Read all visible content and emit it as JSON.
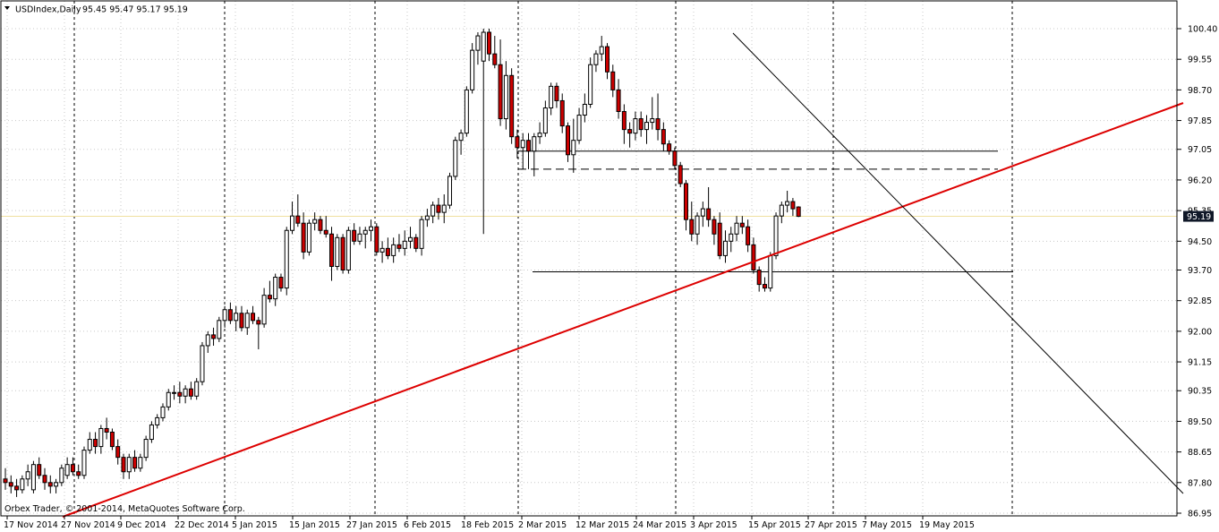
{
  "header": {
    "symbol_label": "USDIndex,Daily",
    "ohlc_label": "95.45 95.47 95.17 95.19"
  },
  "footer": {
    "copyright": "Orbex Trader, © 2001-2014, MetaQuotes Software Corp."
  },
  "current_price_label": "95.19",
  "colors": {
    "up_candle": "#ffffff",
    "down_candle": "#cc0000",
    "wick": "#000000",
    "grid": "#c8c8c8",
    "period_separator": "#000000",
    "trendline_red": "#dd0000",
    "trendline_black": "#000000",
    "bid_line": "#f0e0a0",
    "price_tag_bg": "#101828"
  },
  "chart_data": {
    "type": "candlestick",
    "title": "USDIndex,Daily",
    "ylim": [
      86.7,
      100.6
    ],
    "y_ticks": [
      "100.40",
      "99.55",
      "98.70",
      "97.85",
      "97.05",
      "96.20",
      "95.35",
      "94.50",
      "93.70",
      "92.85",
      "92.00",
      "91.15",
      "90.35",
      "89.50",
      "88.65",
      "87.80",
      "86.95"
    ],
    "x_labels": [
      "17 Nov 2014",
      "27 Nov 2014",
      "9 Dec 2014",
      "22 Dec 2014",
      "5 Jan 2015",
      "15 Jan 2015",
      "27 Jan 2015",
      "6 Feb 2015",
      "18 Feb 2015",
      "2 Mar 2015",
      "12 Mar 2015",
      "24 Mar 2015",
      "3 Apr 2015",
      "15 Apr 2015",
      "27 Apr 2015",
      "7 May 2015",
      "19 May 2015"
    ],
    "grid": "dotted",
    "candles": [
      {
        "o": 87.9,
        "h": 88.2,
        "l": 87.6,
        "c": 87.8
      },
      {
        "o": 87.8,
        "h": 88.0,
        "l": 87.5,
        "c": 87.7
      },
      {
        "o": 87.7,
        "h": 87.9,
        "l": 87.4,
        "c": 87.6
      },
      {
        "o": 87.6,
        "h": 88.0,
        "l": 87.5,
        "c": 87.9
      },
      {
        "o": 87.9,
        "h": 88.3,
        "l": 87.7,
        "c": 88.1
      },
      {
        "o": 87.6,
        "h": 88.4,
        "l": 87.5,
        "c": 88.3
      },
      {
        "o": 88.3,
        "h": 88.5,
        "l": 87.9,
        "c": 88.0
      },
      {
        "o": 88.0,
        "h": 88.2,
        "l": 87.6,
        "c": 87.8
      },
      {
        "o": 87.8,
        "h": 88.0,
        "l": 87.5,
        "c": 87.7
      },
      {
        "o": 87.7,
        "h": 87.9,
        "l": 87.5,
        "c": 87.8
      },
      {
        "o": 87.8,
        "h": 88.3,
        "l": 87.7,
        "c": 88.2
      },
      {
        "o": 88.0,
        "h": 88.5,
        "l": 87.9,
        "c": 88.3
      },
      {
        "o": 88.3,
        "h": 88.5,
        "l": 88.0,
        "c": 88.1
      },
      {
        "o": 88.1,
        "h": 88.3,
        "l": 87.9,
        "c": 88.0
      },
      {
        "o": 88.0,
        "h": 88.8,
        "l": 87.9,
        "c": 88.7
      },
      {
        "o": 88.7,
        "h": 89.2,
        "l": 88.6,
        "c": 89.0
      },
      {
        "o": 89.0,
        "h": 89.2,
        "l": 88.6,
        "c": 88.8
      },
      {
        "o": 88.8,
        "h": 89.4,
        "l": 88.6,
        "c": 89.3
      },
      {
        "o": 89.3,
        "h": 89.6,
        "l": 89.0,
        "c": 89.2
      },
      {
        "o": 89.2,
        "h": 89.3,
        "l": 88.7,
        "c": 88.8
      },
      {
        "o": 88.8,
        "h": 89.0,
        "l": 88.3,
        "c": 88.5
      },
      {
        "o": 88.5,
        "h": 88.6,
        "l": 87.9,
        "c": 88.1
      },
      {
        "o": 88.1,
        "h": 88.6,
        "l": 87.9,
        "c": 88.5
      },
      {
        "o": 88.5,
        "h": 88.7,
        "l": 88.1,
        "c": 88.2
      },
      {
        "o": 88.2,
        "h": 88.6,
        "l": 88.1,
        "c": 88.5
      },
      {
        "o": 88.5,
        "h": 89.1,
        "l": 88.4,
        "c": 89.0
      },
      {
        "o": 89.0,
        "h": 89.5,
        "l": 88.9,
        "c": 89.4
      },
      {
        "o": 89.4,
        "h": 89.7,
        "l": 89.3,
        "c": 89.6
      },
      {
        "o": 89.6,
        "h": 90.0,
        "l": 89.5,
        "c": 89.9
      },
      {
        "o": 89.9,
        "h": 90.4,
        "l": 89.8,
        "c": 90.3
      },
      {
        "o": 90.3,
        "h": 90.5,
        "l": 90.1,
        "c": 90.3
      },
      {
        "o": 90.3,
        "h": 90.6,
        "l": 90.0,
        "c": 90.2
      },
      {
        "o": 90.2,
        "h": 90.5,
        "l": 90.0,
        "c": 90.4
      },
      {
        "o": 90.4,
        "h": 90.6,
        "l": 90.1,
        "c": 90.2
      },
      {
        "o": 90.2,
        "h": 90.7,
        "l": 90.1,
        "c": 90.6
      },
      {
        "o": 90.6,
        "h": 91.7,
        "l": 90.5,
        "c": 91.6
      },
      {
        "o": 91.6,
        "h": 92.0,
        "l": 91.4,
        "c": 91.9
      },
      {
        "o": 91.9,
        "h": 92.1,
        "l": 91.6,
        "c": 91.8
      },
      {
        "o": 91.8,
        "h": 92.4,
        "l": 91.7,
        "c": 92.3
      },
      {
        "o": 92.3,
        "h": 92.7,
        "l": 92.1,
        "c": 92.6
      },
      {
        "o": 92.6,
        "h": 92.8,
        "l": 92.2,
        "c": 92.3
      },
      {
        "o": 92.3,
        "h": 92.7,
        "l": 92.0,
        "c": 92.5
      },
      {
        "o": 92.5,
        "h": 92.7,
        "l": 92.0,
        "c": 92.1
      },
      {
        "o": 92.1,
        "h": 92.6,
        "l": 91.9,
        "c": 92.5
      },
      {
        "o": 92.5,
        "h": 92.7,
        "l": 92.2,
        "c": 92.3
      },
      {
        "o": 92.3,
        "h": 92.4,
        "l": 91.5,
        "c": 92.2
      },
      {
        "o": 92.2,
        "h": 93.2,
        "l": 92.1,
        "c": 93.0
      },
      {
        "o": 93.0,
        "h": 93.4,
        "l": 92.8,
        "c": 92.9
      },
      {
        "o": 92.9,
        "h": 93.6,
        "l": 92.7,
        "c": 93.5
      },
      {
        "o": 93.5,
        "h": 93.6,
        "l": 93.1,
        "c": 93.2
      },
      {
        "o": 93.2,
        "h": 94.9,
        "l": 93.0,
        "c": 94.8
      },
      {
        "o": 94.8,
        "h": 95.6,
        "l": 94.7,
        "c": 95.2
      },
      {
        "o": 95.2,
        "h": 95.8,
        "l": 94.9,
        "c": 95.0
      },
      {
        "o": 95.0,
        "h": 95.3,
        "l": 94.0,
        "c": 94.2
      },
      {
        "o": 94.2,
        "h": 95.1,
        "l": 94.1,
        "c": 95.0
      },
      {
        "o": 95.0,
        "h": 95.3,
        "l": 94.8,
        "c": 95.1
      },
      {
        "o": 95.1,
        "h": 95.2,
        "l": 94.7,
        "c": 94.8
      },
      {
        "o": 94.8,
        "h": 95.2,
        "l": 94.6,
        "c": 94.7
      },
      {
        "o": 94.7,
        "h": 94.9,
        "l": 93.4,
        "c": 93.8
      },
      {
        "o": 93.8,
        "h": 94.7,
        "l": 93.7,
        "c": 94.6
      },
      {
        "o": 94.6,
        "h": 94.7,
        "l": 93.6,
        "c": 93.7
      },
      {
        "o": 93.7,
        "h": 94.9,
        "l": 93.6,
        "c": 94.8
      },
      {
        "o": 94.8,
        "h": 95.0,
        "l": 94.4,
        "c": 94.5
      },
      {
        "o": 94.5,
        "h": 94.9,
        "l": 94.4,
        "c": 94.7
      },
      {
        "o": 94.7,
        "h": 94.9,
        "l": 94.3,
        "c": 94.8
      },
      {
        "o": 94.8,
        "h": 95.1,
        "l": 94.5,
        "c": 94.9
      },
      {
        "o": 94.9,
        "h": 95.0,
        "l": 94.1,
        "c": 94.2
      },
      {
        "o": 94.2,
        "h": 94.5,
        "l": 93.9,
        "c": 94.3
      },
      {
        "o": 94.3,
        "h": 94.6,
        "l": 94.0,
        "c": 94.1
      },
      {
        "o": 94.1,
        "h": 94.6,
        "l": 93.9,
        "c": 94.4
      },
      {
        "o": 94.4,
        "h": 94.7,
        "l": 94.2,
        "c": 94.3
      },
      {
        "o": 94.3,
        "h": 94.8,
        "l": 94.1,
        "c": 94.5
      },
      {
        "o": 94.5,
        "h": 94.9,
        "l": 94.3,
        "c": 94.6
      },
      {
        "o": 94.6,
        "h": 94.7,
        "l": 94.2,
        "c": 94.3
      },
      {
        "o": 94.3,
        "h": 95.2,
        "l": 94.1,
        "c": 95.1
      },
      {
        "o": 95.1,
        "h": 95.4,
        "l": 94.9,
        "c": 95.2
      },
      {
        "o": 95.2,
        "h": 95.6,
        "l": 95.0,
        "c": 95.5
      },
      {
        "o": 95.5,
        "h": 95.7,
        "l": 95.1,
        "c": 95.3
      },
      {
        "o": 95.3,
        "h": 95.8,
        "l": 95.0,
        "c": 95.5
      },
      {
        "o": 95.5,
        "h": 96.4,
        "l": 95.4,
        "c": 96.3
      },
      {
        "o": 96.3,
        "h": 97.4,
        "l": 96.2,
        "c": 97.3
      },
      {
        "o": 97.3,
        "h": 97.6,
        "l": 96.9,
        "c": 97.5
      },
      {
        "o": 97.5,
        "h": 98.8,
        "l": 97.4,
        "c": 98.7
      },
      {
        "o": 98.7,
        "h": 100.0,
        "l": 98.6,
        "c": 99.8
      },
      {
        "o": 99.8,
        "h": 100.3,
        "l": 99.4,
        "c": 100.2
      },
      {
        "o": 99.5,
        "h": 100.4,
        "l": 94.7,
        "c": 100.3
      },
      {
        "o": 100.3,
        "h": 100.4,
        "l": 99.5,
        "c": 99.7
      },
      {
        "o": 99.7,
        "h": 100.2,
        "l": 99.3,
        "c": 99.4
      },
      {
        "o": 99.4,
        "h": 100.1,
        "l": 97.7,
        "c": 97.9
      },
      {
        "o": 97.9,
        "h": 99.5,
        "l": 97.6,
        "c": 99.1
      },
      {
        "o": 99.1,
        "h": 99.3,
        "l": 97.2,
        "c": 97.4
      },
      {
        "o": 97.4,
        "h": 97.6,
        "l": 96.8,
        "c": 97.1
      },
      {
        "o": 97.1,
        "h": 97.5,
        "l": 96.5,
        "c": 97.3
      },
      {
        "o": 97.3,
        "h": 97.5,
        "l": 96.5,
        "c": 97.0
      },
      {
        "o": 97.0,
        "h": 97.5,
        "l": 96.3,
        "c": 97.4
      },
      {
        "o": 97.4,
        "h": 97.8,
        "l": 97.2,
        "c": 97.5
      },
      {
        "o": 97.5,
        "h": 98.4,
        "l": 97.4,
        "c": 98.2
      },
      {
        "o": 98.2,
        "h": 98.9,
        "l": 98.0,
        "c": 98.8
      },
      {
        "o": 98.8,
        "h": 98.9,
        "l": 98.2,
        "c": 98.4
      },
      {
        "o": 98.4,
        "h": 98.6,
        "l": 97.5,
        "c": 97.7
      },
      {
        "o": 97.7,
        "h": 97.8,
        "l": 96.7,
        "c": 96.9
      },
      {
        "o": 96.9,
        "h": 97.9,
        "l": 96.4,
        "c": 97.3
      },
      {
        "o": 97.3,
        "h": 98.2,
        "l": 97.2,
        "c": 98.0
      },
      {
        "o": 98.0,
        "h": 98.6,
        "l": 97.8,
        "c": 98.3
      },
      {
        "o": 98.3,
        "h": 99.6,
        "l": 98.2,
        "c": 99.4
      },
      {
        "o": 99.4,
        "h": 99.8,
        "l": 99.2,
        "c": 99.7
      },
      {
        "o": 99.7,
        "h": 100.2,
        "l": 99.5,
        "c": 99.9
      },
      {
        "o": 99.9,
        "h": 100.0,
        "l": 99.0,
        "c": 99.2
      },
      {
        "o": 99.2,
        "h": 99.4,
        "l": 98.5,
        "c": 98.7
      },
      {
        "o": 98.7,
        "h": 99.0,
        "l": 97.9,
        "c": 98.1
      },
      {
        "o": 98.1,
        "h": 98.3,
        "l": 97.2,
        "c": 97.6
      },
      {
        "o": 97.6,
        "h": 97.8,
        "l": 97.1,
        "c": 97.5
      },
      {
        "o": 97.5,
        "h": 98.1,
        "l": 97.3,
        "c": 97.9
      },
      {
        "o": 97.9,
        "h": 98.1,
        "l": 97.4,
        "c": 97.6
      },
      {
        "o": 97.6,
        "h": 98.0,
        "l": 97.2,
        "c": 97.8
      },
      {
        "o": 97.8,
        "h": 98.5,
        "l": 97.6,
        "c": 97.9
      },
      {
        "o": 97.9,
        "h": 98.6,
        "l": 97.3,
        "c": 97.6
      },
      {
        "o": 97.6,
        "h": 97.8,
        "l": 97.0,
        "c": 97.2
      },
      {
        "o": 97.2,
        "h": 97.3,
        "l": 96.9,
        "c": 97.0
      },
      {
        "o": 97.0,
        "h": 97.1,
        "l": 96.5,
        "c": 96.6
      },
      {
        "o": 96.6,
        "h": 96.7,
        "l": 96.0,
        "c": 96.1
      },
      {
        "o": 96.1,
        "h": 96.2,
        "l": 94.8,
        "c": 95.1
      },
      {
        "o": 95.1,
        "h": 95.6,
        "l": 94.5,
        "c": 94.7
      },
      {
        "o": 94.7,
        "h": 95.3,
        "l": 94.4,
        "c": 95.2
      },
      {
        "o": 95.2,
        "h": 95.6,
        "l": 94.9,
        "c": 95.4
      },
      {
        "o": 95.4,
        "h": 96.0,
        "l": 94.9,
        "c": 95.1
      },
      {
        "o": 95.1,
        "h": 95.2,
        "l": 94.4,
        "c": 94.7
      },
      {
        "o": 95.0,
        "h": 95.3,
        "l": 94.0,
        "c": 94.1
      },
      {
        "o": 94.1,
        "h": 94.8,
        "l": 93.9,
        "c": 94.5
      },
      {
        "o": 94.5,
        "h": 94.9,
        "l": 94.2,
        "c": 94.7
      },
      {
        "o": 94.7,
        "h": 95.2,
        "l": 94.5,
        "c": 95.0
      },
      {
        "o": 95.0,
        "h": 95.2,
        "l": 94.7,
        "c": 94.9
      },
      {
        "o": 94.9,
        "h": 95.1,
        "l": 94.2,
        "c": 94.4
      },
      {
        "o": 94.4,
        "h": 94.6,
        "l": 93.6,
        "c": 93.7
      },
      {
        "o": 93.7,
        "h": 93.8,
        "l": 93.1,
        "c": 93.3
      },
      {
        "o": 93.3,
        "h": 93.5,
        "l": 93.1,
        "c": 93.2
      },
      {
        "o": 93.2,
        "h": 94.2,
        "l": 93.1,
        "c": 94.1
      },
      {
        "o": 94.1,
        "h": 95.3,
        "l": 94.0,
        "c": 95.2
      },
      {
        "o": 95.2,
        "h": 95.6,
        "l": 95.0,
        "c": 95.5
      },
      {
        "o": 95.5,
        "h": 95.9,
        "l": 95.3,
        "c": 95.6
      },
      {
        "o": 95.6,
        "h": 95.7,
        "l": 95.2,
        "c": 95.4
      },
      {
        "o": 95.45,
        "h": 95.47,
        "l": 95.17,
        "c": 95.19
      }
    ],
    "annotations": {
      "resistance_solid": 97.0,
      "resistance_dashed": 96.5,
      "support_solid": 93.65,
      "current_bid": 95.19,
      "red_trendline": {
        "from": {
          "bar": 8,
          "price": 86.9
        },
        "to": {
          "bar": 168,
          "price": 97.95
        }
      },
      "black_trendline": {
        "from": {
          "bar": 110,
          "price": 100.2
        },
        "to": {
          "bar": 168,
          "price": 87.6
        }
      }
    }
  }
}
